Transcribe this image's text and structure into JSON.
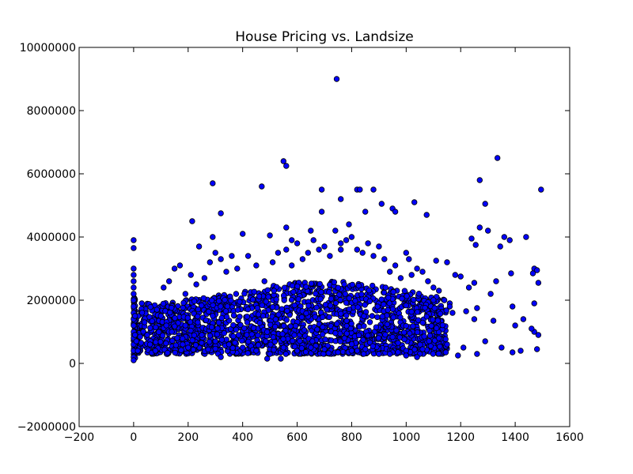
{
  "chart_data": {
    "type": "scatter",
    "title": "House Pricing vs. Landsize",
    "xlabel": "",
    "ylabel": "",
    "xlim": [
      -200,
      1600
    ],
    "ylim": [
      -2000000,
      10000000
    ],
    "x_ticks": [
      -200,
      0,
      200,
      400,
      600,
      800,
      1000,
      1200,
      1400,
      1600
    ],
    "y_ticks": [
      -2000000,
      0,
      2000000,
      4000000,
      6000000,
      8000000,
      10000000
    ],
    "x_tick_labels": [
      "−200",
      "0",
      "200",
      "400",
      "600",
      "800",
      "1000",
      "1200",
      "1400",
      "1600"
    ],
    "y_tick_labels": [
      "−2000000",
      "0",
      "2000000",
      "4000000",
      "6000000",
      "8000000",
      "10000000"
    ],
    "grid": false,
    "legend": "none",
    "marker_color": "#0000ff",
    "marker_edge_color": "#000000",
    "series": [
      {
        "values": [
          [
            745,
            9000000
          ],
          [
            1335,
            6500000
          ],
          [
            550,
            6400000
          ],
          [
            560,
            6250000
          ],
          [
            290,
            5700000
          ],
          [
            1270,
            5800000
          ],
          [
            470,
            5600000
          ],
          [
            690,
            5500000
          ],
          [
            820,
            5500000
          ],
          [
            830,
            5500000
          ],
          [
            880,
            5500000
          ],
          [
            1495,
            5500000
          ],
          [
            760,
            5200000
          ],
          [
            1030,
            5100000
          ],
          [
            1290,
            5050000
          ],
          [
            910,
            5050000
          ],
          [
            215,
            4500000
          ],
          [
            320,
            4750000
          ],
          [
            690,
            4800000
          ],
          [
            1075,
            4700000
          ],
          [
            850,
            4800000
          ],
          [
            950,
            4900000
          ],
          [
            960,
            4800000
          ],
          [
            790,
            4400000
          ],
          [
            650,
            4200000
          ],
          [
            560,
            4300000
          ],
          [
            1300,
            4200000
          ],
          [
            1270,
            4300000
          ],
          [
            1360,
            4000000
          ],
          [
            1440,
            4000000
          ],
          [
            1240,
            3950000
          ],
          [
            1380,
            3900000
          ],
          [
            400,
            4100000
          ],
          [
            290,
            4000000
          ],
          [
            0,
            3900000
          ],
          [
            0,
            3650000
          ],
          [
            1345,
            3700000
          ],
          [
            1255,
            3750000
          ],
          [
            580,
            3900000
          ],
          [
            760,
            3800000
          ],
          [
            500,
            4050000
          ],
          [
            240,
            3700000
          ],
          [
            1110,
            3250000
          ],
          [
            1150,
            3200000
          ],
          [
            1470,
            3000000
          ],
          [
            1480,
            2950000
          ],
          [
            1465,
            2850000
          ],
          [
            1385,
            2850000
          ],
          [
            1485,
            2550000
          ],
          [
            1250,
            2550000
          ],
          [
            1330,
            2600000
          ],
          [
            1230,
            2400000
          ],
          [
            1180,
            2800000
          ],
          [
            1200,
            2750000
          ],
          [
            1310,
            2200000
          ],
          [
            1470,
            1900000
          ],
          [
            1390,
            1800000
          ],
          [
            1430,
            1400000
          ],
          [
            1400,
            1200000
          ],
          [
            1320,
            1350000
          ],
          [
            1220,
            1650000
          ],
          [
            1250,
            1400000
          ],
          [
            1260,
            1750000
          ],
          [
            1160,
            1900000
          ],
          [
            1170,
            1600000
          ],
          [
            1470,
            1000000
          ],
          [
            1485,
            900000
          ],
          [
            1460,
            1100000
          ],
          [
            1480,
            450000
          ],
          [
            1420,
            400000
          ],
          [
            1390,
            350000
          ],
          [
            1350,
            500000
          ],
          [
            1290,
            700000
          ],
          [
            1260,
            300000
          ],
          [
            1210,
            500000
          ],
          [
            1190,
            250000
          ],
          [
            1150,
            600000
          ],
          [
            1120,
            800000
          ],
          [
            1090,
            550000
          ],
          [
            1060,
            450000
          ],
          [
            0,
            3000000
          ],
          [
            0,
            2800000
          ],
          [
            0,
            2600000
          ],
          [
            0,
            2400000
          ],
          [
            0,
            2200000
          ],
          [
            0,
            2000000
          ],
          [
            0,
            1800000
          ],
          [
            0,
            1600000
          ],
          [
            0,
            1400000
          ],
          [
            0,
            1200000
          ],
          [
            0,
            1000000
          ],
          [
            0,
            800000
          ],
          [
            0,
            600000
          ],
          [
            0,
            400000
          ],
          [
            0,
            200000
          ],
          [
            0,
            100000
          ],
          [
            5,
            1500000
          ],
          [
            5,
            900000
          ],
          [
            10,
            700000
          ],
          [
            15,
            400000
          ],
          [
            30,
            1900000
          ],
          [
            40,
            1300000
          ],
          [
            50,
            900000
          ],
          [
            60,
            600000
          ],
          [
            80,
            400000
          ],
          [
            100,
            1500000
          ],
          [
            110,
            2400000
          ],
          [
            130,
            2600000
          ],
          [
            150,
            3000000
          ],
          [
            170,
            3100000
          ],
          [
            190,
            2200000
          ],
          [
            210,
            2800000
          ],
          [
            230,
            2500000
          ],
          [
            260,
            2700000
          ],
          [
            280,
            3200000
          ],
          [
            300,
            3500000
          ],
          [
            320,
            3300000
          ],
          [
            340,
            2900000
          ],
          [
            360,
            3400000
          ],
          [
            380,
            3000000
          ],
          [
            420,
            3400000
          ],
          [
            450,
            3100000
          ],
          [
            480,
            2600000
          ],
          [
            510,
            3200000
          ],
          [
            530,
            3500000
          ],
          [
            560,
            3600000
          ],
          [
            580,
            3100000
          ],
          [
            600,
            3800000
          ],
          [
            620,
            3300000
          ],
          [
            640,
            3500000
          ],
          [
            660,
            3900000
          ],
          [
            680,
            3600000
          ],
          [
            700,
            3700000
          ],
          [
            720,
            3400000
          ],
          [
            740,
            4200000
          ],
          [
            760,
            3600000
          ],
          [
            780,
            3900000
          ],
          [
            800,
            4000000
          ],
          [
            820,
            3600000
          ],
          [
            840,
            3500000
          ],
          [
            860,
            3800000
          ],
          [
            880,
            3400000
          ],
          [
            900,
            3700000
          ],
          [
            920,
            3300000
          ],
          [
            940,
            2900000
          ],
          [
            960,
            3100000
          ],
          [
            980,
            2700000
          ],
          [
            1000,
            3500000
          ],
          [
            1010,
            3300000
          ],
          [
            1020,
            2800000
          ],
          [
            1040,
            3000000
          ],
          [
            1060,
            2900000
          ],
          [
            1080,
            2600000
          ],
          [
            1100,
            2400000
          ],
          [
            1120,
            2300000
          ],
          [
            1140,
            2000000
          ],
          [
            1160,
            1800000
          ],
          [
            120,
            1200000
          ],
          [
            140,
            1000000
          ],
          [
            160,
            800000
          ],
          [
            180,
            600000
          ],
          [
            200,
            500000
          ],
          [
            250,
            900000
          ],
          [
            300,
            700000
          ],
          [
            350,
            600000
          ],
          [
            400,
            500000
          ],
          [
            450,
            400000
          ],
          [
            500,
            300000
          ],
          [
            550,
            500000
          ],
          [
            600,
            400000
          ],
          [
            650,
            500000
          ],
          [
            700,
            450000
          ],
          [
            750,
            350000
          ],
          [
            800,
            400000
          ],
          [
            850,
            450000
          ],
          [
            900,
            300000
          ],
          [
            950,
            350000
          ],
          [
            1000,
            400000
          ],
          [
            1050,
            300000
          ],
          [
            320,
            200000
          ],
          [
            490,
            150000
          ],
          [
            540,
            150000
          ],
          [
            940,
            300000
          ],
          [
            1000,
            250000
          ],
          [
            1040,
            200000
          ]
        ],
        "dense_band": {
          "count": 1800,
          "x_range": [
            0,
            1150
          ],
          "y_floor": 300000,
          "y_center_low": 900000,
          "y_peak": 2600000,
          "peak_x": 700
        }
      }
    ]
  }
}
